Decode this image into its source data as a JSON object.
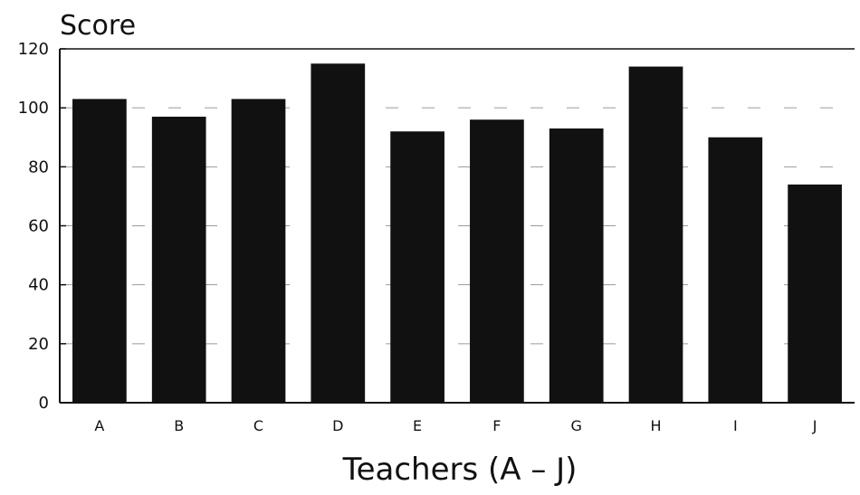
{
  "chart_data": {
    "type": "bar",
    "title": "Score",
    "xlabel": "Teachers (A – J)",
    "ylabel": "",
    "ylim": [
      0,
      120
    ],
    "yticks": [
      "0",
      "20",
      "40",
      "60",
      "80",
      "100",
      "120"
    ],
    "categories": [
      "A",
      "B",
      "C",
      "D",
      "E",
      "F",
      "G",
      "H",
      "I",
      "J"
    ],
    "values": [
      103,
      97,
      103,
      115,
      92,
      96,
      93,
      114,
      90,
      74
    ],
    "bar_color": "#111111",
    "grid": "horizontal dashed"
  }
}
